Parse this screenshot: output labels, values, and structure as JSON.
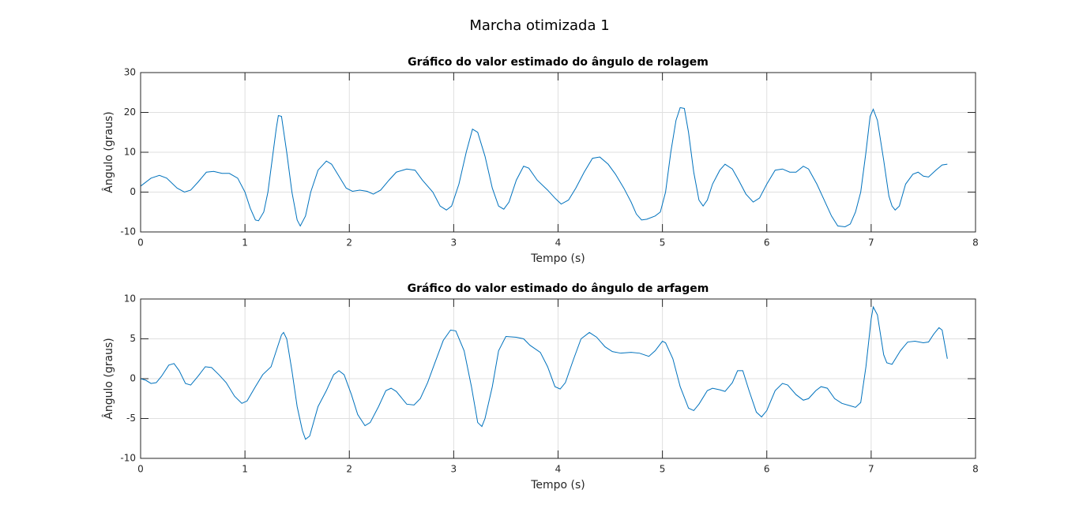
{
  "title": "Marcha otimizada 1",
  "chart_data": [
    {
      "type": "line",
      "title": "Gráfico do valor estimado do ângulo de rolagem",
      "xlabel": "Tempo (s)",
      "ylabel": "Ângulo (graus)",
      "color": "#0072bd",
      "grid": true,
      "xlim": [
        0,
        8
      ],
      "xticks": [
        0,
        1,
        2,
        3,
        4,
        5,
        6,
        7,
        8
      ],
      "ylim": [
        -10,
        30
      ],
      "yticks": [
        -10,
        0,
        10,
        20,
        30
      ],
      "x": [
        0,
        0.1,
        0.18,
        0.25,
        0.35,
        0.42,
        0.48,
        0.55,
        0.63,
        0.7,
        0.78,
        0.85,
        0.93,
        1.0,
        1.05,
        1.1,
        1.13,
        1.18,
        1.22,
        1.27,
        1.3,
        1.32,
        1.35,
        1.4,
        1.45,
        1.5,
        1.53,
        1.58,
        1.63,
        1.7,
        1.78,
        1.83,
        1.9,
        1.97,
        2.03,
        2.1,
        2.17,
        2.23,
        2.3,
        2.38,
        2.45,
        2.55,
        2.63,
        2.7,
        2.8,
        2.87,
        2.93,
        2.98,
        3.05,
        3.12,
        3.18,
        3.23,
        3.3,
        3.37,
        3.43,
        3.48,
        3.53,
        3.6,
        3.67,
        3.72,
        3.8,
        3.9,
        3.97,
        4.03,
        4.1,
        4.17,
        4.25,
        4.33,
        4.4,
        4.48,
        4.55,
        4.63,
        4.7,
        4.75,
        4.8,
        4.85,
        4.93,
        4.98,
        5.03,
        5.08,
        5.13,
        5.17,
        5.21,
        5.25,
        5.3,
        5.35,
        5.39,
        5.43,
        5.48,
        5.55,
        5.6,
        5.67,
        5.73,
        5.8,
        5.87,
        5.93,
        6.0,
        6.08,
        6.15,
        6.22,
        6.28,
        6.35,
        6.4,
        6.48,
        6.55,
        6.62,
        6.68,
        6.75,
        6.8,
        6.85,
        6.9,
        6.95,
        6.99,
        7.02,
        7.06,
        7.12,
        7.17,
        7.2,
        7.23,
        7.27,
        7.33,
        7.4,
        7.45,
        7.5,
        7.55,
        7.62,
        7.68,
        7.73
      ],
      "values": [
        1.5,
        3.5,
        4.2,
        3.5,
        1,
        0,
        0.5,
        2.5,
        5,
        5.2,
        4.7,
        4.7,
        3.5,
        0,
        -4,
        -7,
        -7.2,
        -5,
        0,
        10,
        16,
        19.2,
        19,
        10,
        0,
        -7,
        -8.5,
        -6,
        0,
        5.5,
        7.8,
        7,
        4,
        1,
        0.2,
        0.5,
        0.2,
        -0.5,
        0.5,
        3,
        5,
        5.8,
        5.5,
        3,
        0,
        -3.5,
        -4.5,
        -3.5,
        2,
        10,
        15.8,
        15,
        9,
        1,
        -3.5,
        -4.3,
        -2.5,
        3,
        6.5,
        6,
        3,
        0.5,
        -1.5,
        -3,
        -2,
        1,
        5,
        8.5,
        8.8,
        7,
        4.5,
        1,
        -2.5,
        -5.5,
        -7,
        -6.8,
        -6,
        -5,
        0,
        10,
        18,
        21.2,
        21,
        15,
        5,
        -2,
        -3.5,
        -2,
        2,
        5.5,
        7,
        5.8,
        3,
        -0.5,
        -2.5,
        -1.5,
        2,
        5.5,
        5.8,
        5,
        5,
        6.5,
        5.8,
        2,
        -2,
        -6,
        -8.5,
        -8.7,
        -8,
        -5,
        0,
        10,
        19,
        20.8,
        18,
        8,
        -1,
        -3.5,
        -4.5,
        -3.5,
        2,
        4.5,
        5,
        4,
        3.8,
        5.5,
        6.8,
        7
      ]
    },
    {
      "type": "line",
      "title": "Gráfico do valor estimado do ângulo de arfagem",
      "xlabel": "Tempo (s)",
      "ylabel": "Ângulo (graus)",
      "color": "#0072bd",
      "grid": true,
      "xlim": [
        0,
        8
      ],
      "xticks": [
        0,
        1,
        2,
        3,
        4,
        5,
        6,
        7,
        8
      ],
      "ylim": [
        -10,
        10
      ],
      "yticks": [
        -10,
        -5,
        0,
        5,
        10
      ],
      "x": [
        0,
        0.05,
        0.1,
        0.15,
        0.2,
        0.27,
        0.32,
        0.37,
        0.43,
        0.48,
        0.55,
        0.62,
        0.68,
        0.75,
        0.82,
        0.9,
        0.97,
        1.02,
        1.1,
        1.17,
        1.25,
        1.3,
        1.35,
        1.37,
        1.4,
        1.45,
        1.5,
        1.55,
        1.58,
        1.62,
        1.7,
        1.78,
        1.85,
        1.9,
        1.95,
        2.02,
        2.08,
        2.15,
        2.2,
        2.28,
        2.35,
        2.4,
        2.45,
        2.55,
        2.62,
        2.68,
        2.75,
        2.82,
        2.9,
        2.97,
        3.02,
        3.1,
        3.17,
        3.23,
        3.27,
        3.3,
        3.37,
        3.43,
        3.5,
        3.6,
        3.67,
        3.73,
        3.83,
        3.9,
        3.97,
        4.02,
        4.07,
        4.15,
        4.22,
        4.3,
        4.37,
        4.45,
        4.52,
        4.6,
        4.7,
        4.78,
        4.87,
        4.93,
        5.0,
        5.03,
        5.1,
        5.17,
        5.25,
        5.3,
        5.35,
        5.43,
        5.48,
        5.55,
        5.6,
        5.67,
        5.72,
        5.77,
        5.83,
        5.9,
        5.95,
        6.0,
        6.08,
        6.15,
        6.2,
        6.28,
        6.35,
        6.4,
        6.47,
        6.52,
        6.58,
        6.65,
        6.72,
        6.8,
        6.85,
        6.9,
        6.95,
        7.0,
        7.02,
        7.06,
        7.12,
        7.15,
        7.2,
        7.28,
        7.35,
        7.42,
        7.5,
        7.55,
        7.6,
        7.65,
        7.68,
        7.73
      ],
      "values": [
        0,
        -0.2,
        -0.6,
        -0.5,
        0.3,
        1.7,
        1.9,
        1,
        -0.6,
        -0.8,
        0.3,
        1.5,
        1.4,
        0.5,
        -0.5,
        -2.2,
        -3.1,
        -2.8,
        -1,
        0.5,
        1.5,
        3.5,
        5.5,
        5.8,
        5,
        1,
        -3.5,
        -6.5,
        -7.6,
        -7.2,
        -3.5,
        -1.5,
        0.5,
        1,
        0.5,
        -2,
        -4.5,
        -5.9,
        -5.5,
        -3.5,
        -1.5,
        -1.2,
        -1.6,
        -3.2,
        -3.3,
        -2.5,
        -0.5,
        2,
        4.8,
        6.1,
        6,
        3.5,
        -1,
        -5.5,
        -6,
        -5,
        -1,
        3.5,
        5.3,
        5.2,
        5,
        4.2,
        3.3,
        1.5,
        -1,
        -1.3,
        -0.5,
        2.5,
        5,
        5.8,
        5.2,
        4,
        3.4,
        3.2,
        3.3,
        3.2,
        2.8,
        3.5,
        4.7,
        4.5,
        2.5,
        -1,
        -3.7,
        -4,
        -3.2,
        -1.5,
        -1.2,
        -1.4,
        -1.6,
        -0.5,
        1,
        1,
        -1.5,
        -4.2,
        -4.8,
        -4,
        -1.5,
        -0.6,
        -0.8,
        -2,
        -2.7,
        -2.5,
        -1.5,
        -1,
        -1.2,
        -2.5,
        -3.1,
        -3.4,
        -3.6,
        -3,
        1.5,
        7.5,
        9,
        8,
        3,
        2,
        1.8,
        3.5,
        4.6,
        4.7,
        4.5,
        4.6,
        5.6,
        6.4,
        6.1,
        2.5
      ]
    }
  ]
}
